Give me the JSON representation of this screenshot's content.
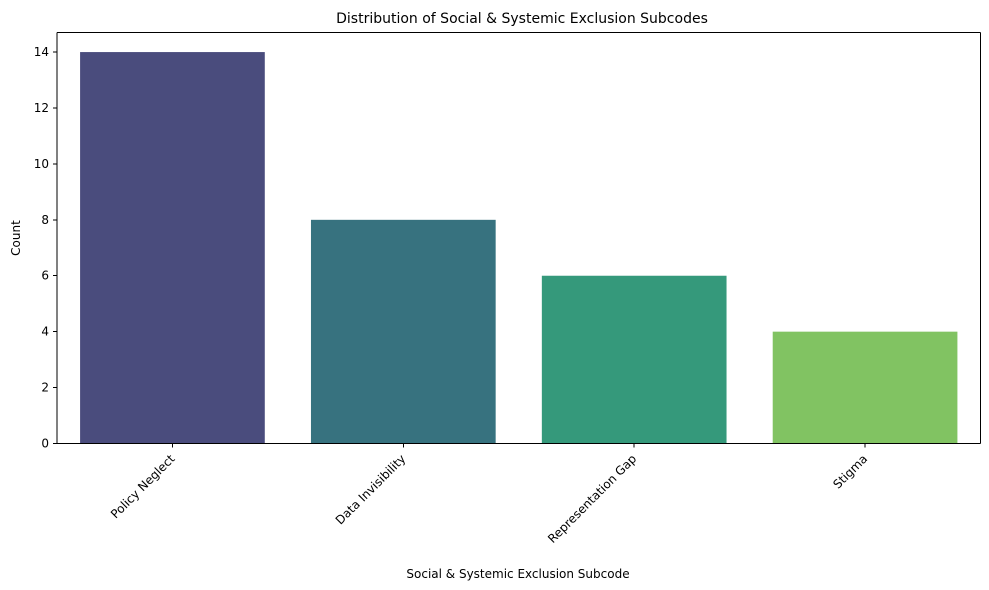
{
  "chart_data": {
    "type": "bar",
    "title": "Distribution of Social & Systemic Exclusion Subcodes",
    "xlabel": "Social & Systemic Exclusion Subcode",
    "ylabel": "Count",
    "categories": [
      "Policy Neglect",
      "Data Invisibility",
      "Representation Gap",
      "Stigma"
    ],
    "values": [
      14,
      8,
      6,
      4
    ],
    "colors": [
      "#4a4c7d",
      "#37727f",
      "#35997b",
      "#81c362"
    ],
    "ylim": [
      0,
      14.7
    ],
    "yticks": [
      0,
      2,
      4,
      6,
      8,
      10,
      12,
      14
    ],
    "grid": false,
    "legend": "none"
  }
}
